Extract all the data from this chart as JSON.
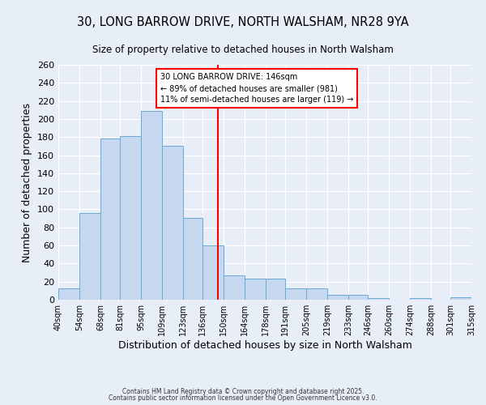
{
  "title": "30, LONG BARROW DRIVE, NORTH WALSHAM, NR28 9YA",
  "subtitle": "Size of property relative to detached houses in North Walsham",
  "xlabel": "Distribution of detached houses by size in North Walsham",
  "ylabel": "Number of detached properties",
  "bar_edges": [
    40,
    54,
    68,
    81,
    95,
    109,
    123,
    136,
    150,
    164,
    178,
    191,
    205,
    219,
    233,
    246,
    260,
    274,
    288,
    301,
    315
  ],
  "bar_heights": [
    13,
    96,
    178,
    181,
    209,
    170,
    91,
    60,
    27,
    23,
    23,
    13,
    13,
    5,
    5,
    2,
    0,
    2,
    0,
    3
  ],
  "bar_color": "#c5d8f0",
  "bar_edgecolor": "#6aaad4",
  "vline_x": 146,
  "vline_color": "red",
  "annotation_title": "30 LONG BARROW DRIVE: 146sqm",
  "annotation_line2": "← 89% of detached houses are smaller (981)",
  "annotation_line3": "11% of semi-detached houses are larger (119) →",
  "annotation_box_edgecolor": "red",
  "ylim": [
    0,
    260
  ],
  "yticks": [
    0,
    20,
    40,
    60,
    80,
    100,
    120,
    140,
    160,
    180,
    200,
    220,
    240,
    260
  ],
  "tick_labels": [
    "40sqm",
    "54sqm",
    "68sqm",
    "81sqm",
    "95sqm",
    "109sqm",
    "123sqm",
    "136sqm",
    "150sqm",
    "164sqm",
    "178sqm",
    "191sqm",
    "205sqm",
    "219sqm",
    "233sqm",
    "246sqm",
    "260sqm",
    "274sqm",
    "288sqm",
    "301sqm",
    "315sqm"
  ],
  "footer1": "Contains HM Land Registry data © Crown copyright and database right 2025.",
  "footer2": "Contains public sector information licensed under the Open Government Licence v3.0.",
  "background_color": "#e8eef8",
  "grid_color": "#ffffff"
}
